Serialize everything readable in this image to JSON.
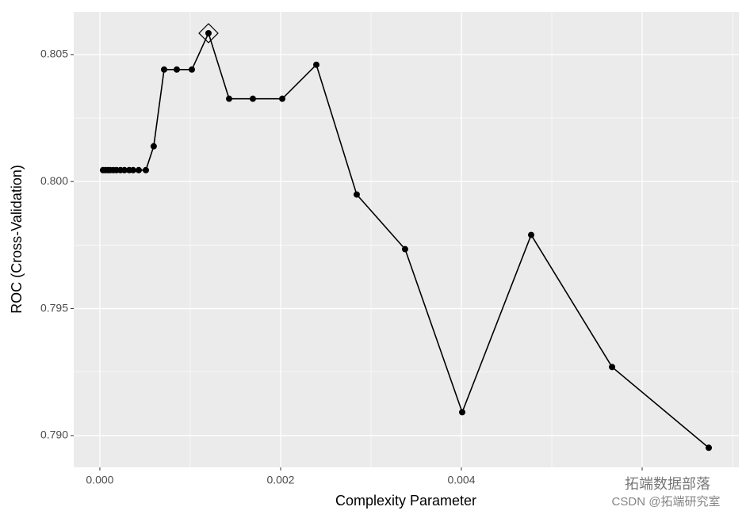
{
  "chart_data": {
    "type": "line",
    "x_label": "Complexity Parameter",
    "y_label": "ROC (Cross-Validation)",
    "x": [
      3.5e-05,
      6.1e-05,
      8.8e-05,
      0.000114,
      0.000149,
      0.000184,
      0.000228,
      0.000272,
      0.000325,
      0.000368,
      0.00043,
      0.000509,
      0.000596,
      0.000711,
      0.000851,
      0.001018,
      0.001202,
      0.00143,
      0.001693,
      0.002018,
      0.002395,
      0.002842,
      0.003377,
      0.004009,
      0.004772,
      0.005667,
      0.006737
    ],
    "series": [
      {
        "color": "#000000",
        "values": [
          0.80045,
          0.80045,
          0.80045,
          0.80045,
          0.80045,
          0.80045,
          0.80045,
          0.80045,
          0.80045,
          0.80045,
          0.80045,
          0.80045,
          0.80139,
          0.80441,
          0.80441,
          0.80441,
          0.80584,
          0.80326,
          0.80326,
          0.80326,
          0.8046,
          0.79949,
          0.79734,
          0.79092,
          0.7979,
          0.7927,
          0.78952
        ]
      }
    ],
    "highlight_index": 16,
    "xlim": [
      -0.000289,
      0.00707
    ],
    "ylim": [
      0.78875,
      0.80668
    ],
    "xticks": [
      {
        "value": 0,
        "label": "0.000"
      },
      {
        "value": 0.002,
        "label": "0.002"
      },
      {
        "value": 0.004,
        "label": "0.004"
      },
      {
        "value": 0.006,
        "label": ""
      }
    ],
    "minor_xticks": [
      0.001,
      0.003,
      0.005,
      0.007
    ],
    "yticks": [
      {
        "value": 0.79,
        "label": "0.790"
      },
      {
        "value": 0.795,
        "label": "0.795"
      },
      {
        "value": 0.8,
        "label": "0.800"
      },
      {
        "value": 0.805,
        "label": "0.805"
      }
    ],
    "minor_yticks": [
      0.7925,
      0.7975,
      0.8025
    ],
    "grid": true,
    "watermark": [
      "拓端数据部落",
      "CSDN @拓端研究室"
    ]
  }
}
